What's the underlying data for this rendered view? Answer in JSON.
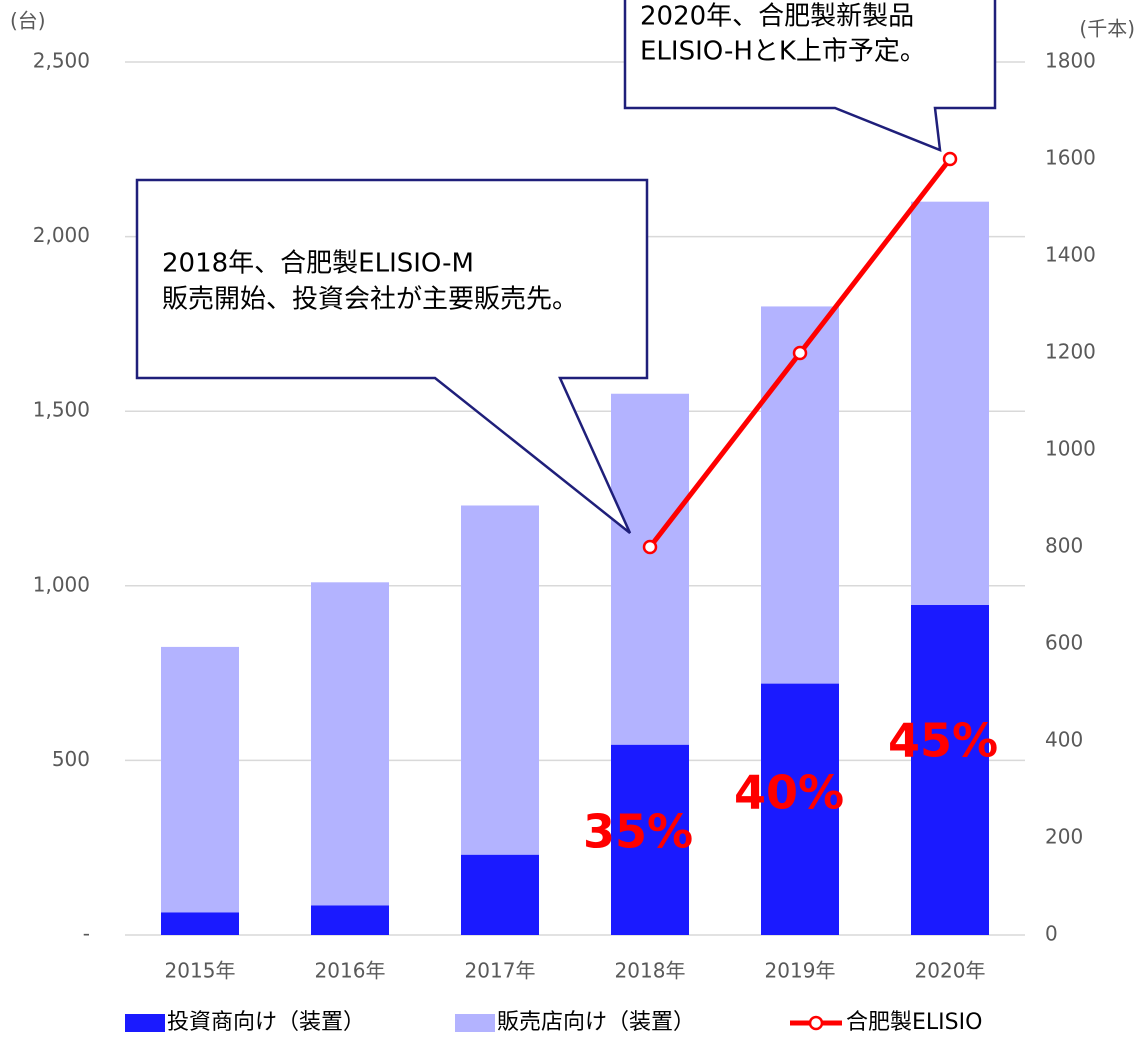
{
  "chart_data": {
    "type": "bar",
    "categories": [
      "2015年",
      "2016年",
      "2017年",
      "2018年",
      "2019年",
      "2020年"
    ],
    "series": [
      {
        "name": "投資商向け（装置）",
        "color": "#1a1aff",
        "values": [
          65,
          85,
          230,
          545,
          720,
          945
        ]
      },
      {
        "name": "販売店向け（装置）",
        "color": "#b3b3ff",
        "values": [
          760,
          925,
          1000,
          1005,
          1080,
          1155
        ]
      },
      {
        "name": "合肥製ELISIO",
        "type": "line",
        "axis": "y2",
        "color": "#ff0000",
        "values": [
          null,
          null,
          null,
          800,
          1200,
          1600
        ]
      }
    ],
    "stacked": true,
    "ylabel": "(台)",
    "y2label": "(千本)",
    "ylim": [
      0,
      2500
    ],
    "yticks": [
      {
        "value": 0,
        "label": "-"
      },
      500,
      {
        "value": 1000,
        "label": "1,000"
      },
      {
        "value": 1500,
        "label": "1,500"
      },
      {
        "value": 2000,
        "label": "2,000"
      },
      {
        "value": 2500,
        "label": "2,500"
      }
    ],
    "y2lim": [
      0,
      1800
    ],
    "y2ticks": [
      0,
      200,
      400,
      600,
      800,
      1000,
      1200,
      1400,
      1600,
      1800
    ],
    "grid": true,
    "legend": "bottom",
    "callouts": [
      {
        "lines": [
          "2018年、合肥製ELISIO-M",
          "販売開始、投資会社が主要販売先。"
        ]
      },
      {
        "lines": [
          "2020年、合肥製新製品",
          "ELISIO-HとK上市予定。"
        ]
      }
    ],
    "annotations": [
      "35%",
      "40%",
      "45%"
    ]
  }
}
